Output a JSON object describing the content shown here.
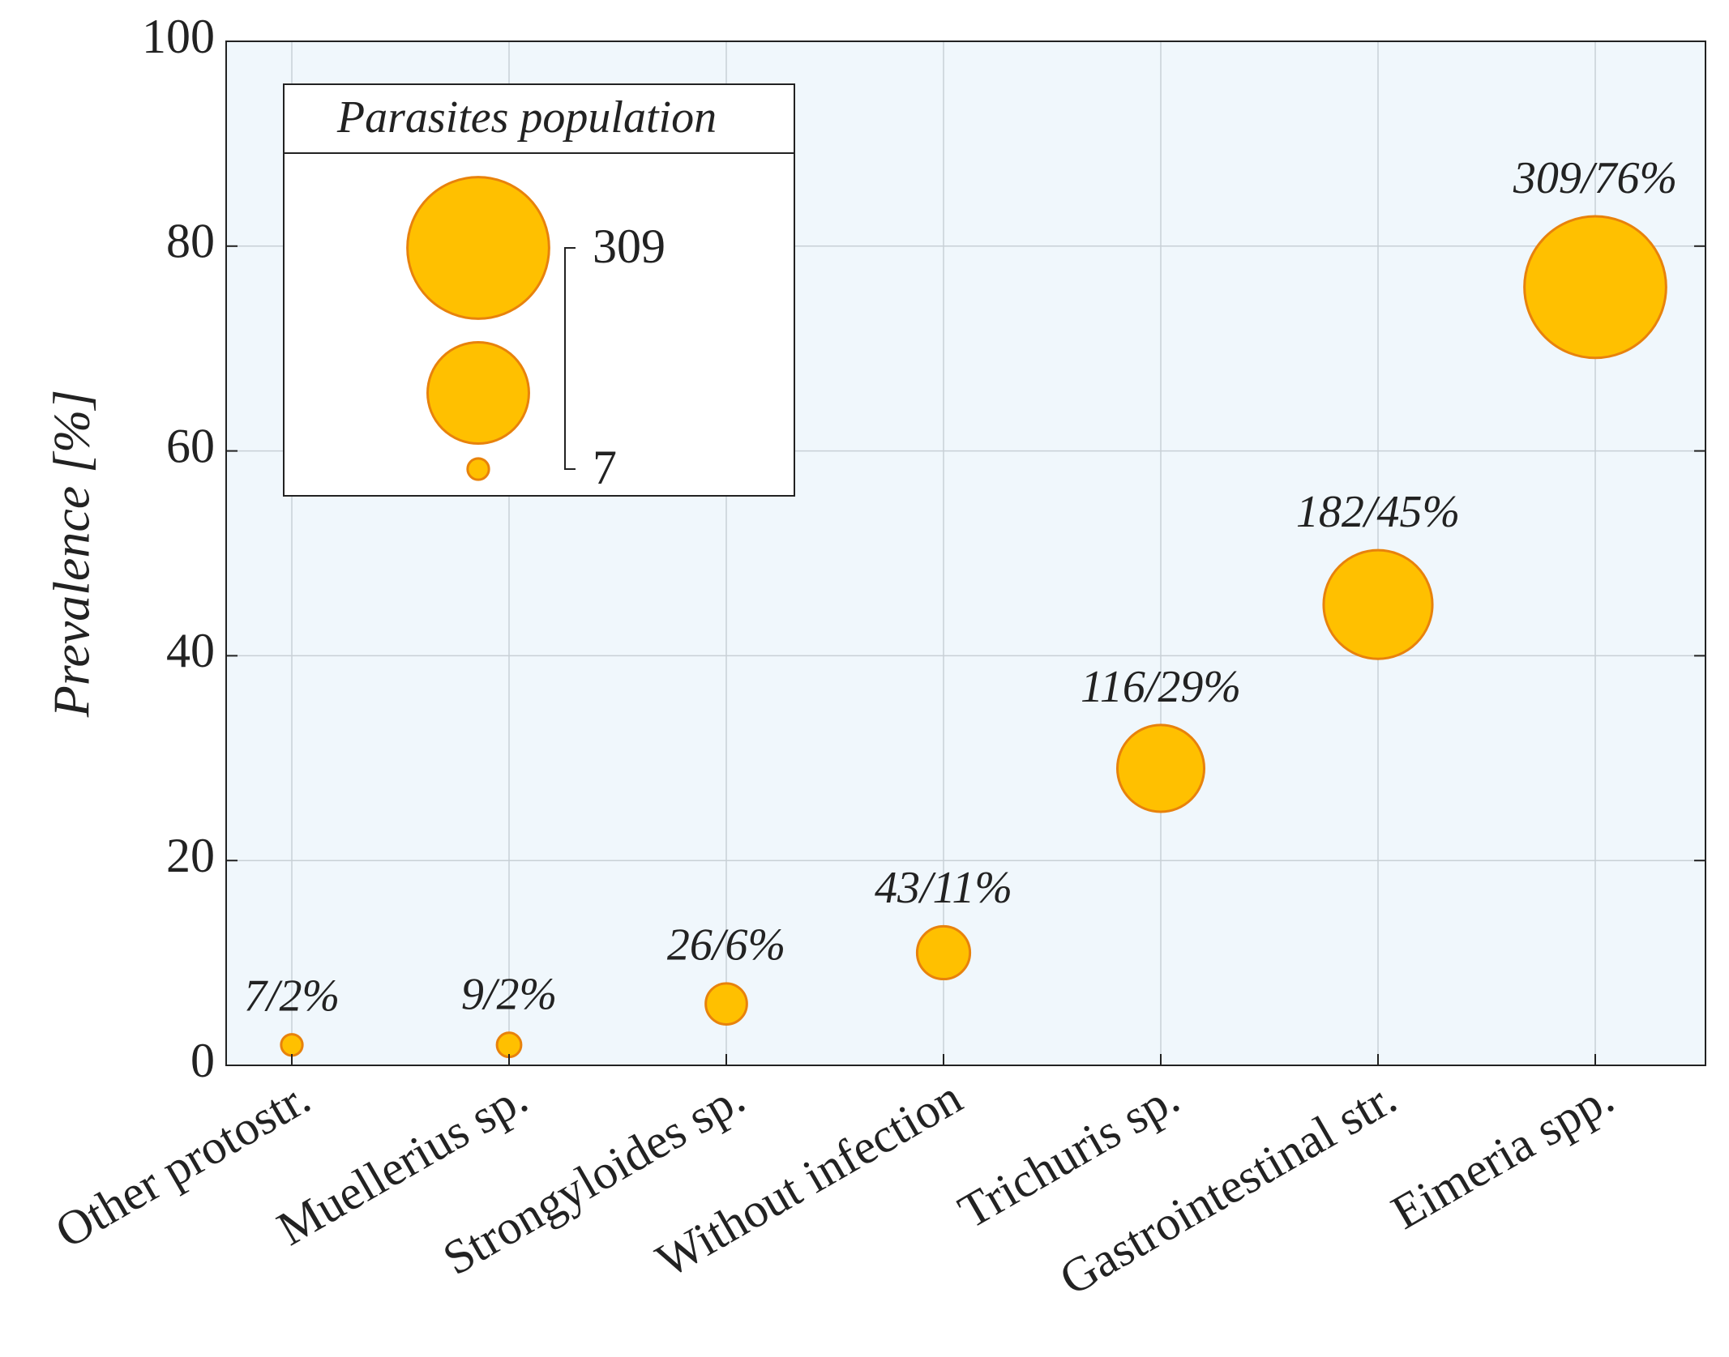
{
  "chart_data": {
    "type": "bubble",
    "y_label": "Prevalence [%]",
    "categories": [
      "Other protostr.",
      "Muellerius sp.",
      "Strongyloides sp.",
      "Without infection",
      "Trichuris sp.",
      "Gastrointestinal str.",
      "Eimeria spp."
    ],
    "values": [
      2,
      2,
      6,
      11,
      29,
      45,
      76
    ],
    "sizes": [
      7,
      9,
      26,
      43,
      116,
      182,
      309
    ],
    "value_labels": [
      "7/2%",
      "9/2%",
      "26/6%",
      "43/11%",
      "116/29%",
      "182/45%",
      "309/76%"
    ],
    "color": "#ffc000",
    "edge_color": "#e8820c",
    "ylim": [
      0,
      100
    ],
    "yticks": [
      0,
      20,
      40,
      60,
      80,
      100
    ],
    "grid": true,
    "legend": {
      "title": "Parasites population",
      "sizes": [
        309,
        158,
        7
      ],
      "position": "upper left"
    }
  }
}
